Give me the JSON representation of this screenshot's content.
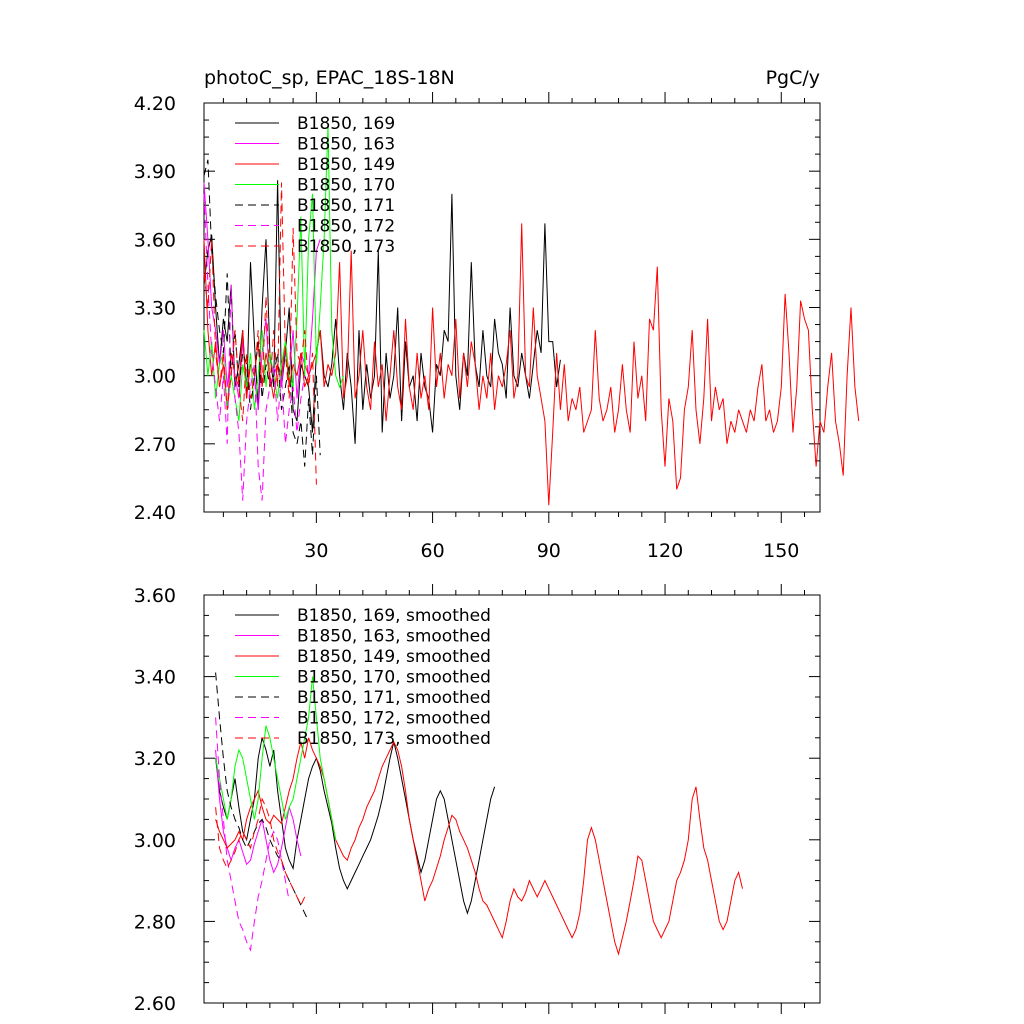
{
  "figure": {
    "title_left": "photoC_sp, EPAC_18S-18N",
    "title_right": "PgC/y"
  },
  "chart_data": [
    {
      "type": "line",
      "title": "photoC_sp, EPAC_18S-18N",
      "units": "PgC/y",
      "xlabel": "",
      "ylabel": "",
      "xlim": [
        1,
        160
      ],
      "ylim": [
        2.4,
        4.2
      ],
      "x_ticks": [
        30,
        60,
        90,
        120,
        150
      ],
      "y_ticks": [
        2.4,
        2.7,
        3.0,
        3.3,
        3.6,
        3.9,
        4.2
      ],
      "y_tick_labels": [
        "2.40",
        "2.70",
        "3.00",
        "3.30",
        "3.60",
        "3.90",
        "4.20"
      ],
      "x_tick_labels": [
        "30",
        "60",
        "90",
        "120",
        "150"
      ],
      "legend_position": "top-left",
      "series": [
        {
          "name": "B1850, 169",
          "color": "#000000",
          "dash": "solid",
          "x_start": 1,
          "values": [
            3.4,
            3.55,
            3.62,
            3.3,
            3.05,
            3.25,
            3.15,
            3.4,
            2.95,
            3.05,
            3.2,
            2.9,
            3.5,
            3.15,
            2.85,
            3.3,
            3.6,
            3.1,
            2.95,
            3.86,
            2.95,
            3.1,
            3.3,
            2.85,
            2.8,
            3.05,
            3.0,
            2.95,
            2.75,
            3.1,
            3.2,
            3.0,
            2.95,
            3.05,
            3.25,
            3.0,
            2.85,
            3.1,
            2.95,
            2.7,
            3.2,
            2.85,
            3.05,
            2.9,
            3.0,
            3.55,
            2.75,
            3.1,
            2.9,
            3.0,
            3.3,
            2.8,
            3.15,
            2.95,
            3.0,
            2.8,
            3.1,
            2.95,
            2.9,
            2.75,
            3.05,
            3.0,
            3.2,
            3.15,
            3.8,
            3.0,
            2.85,
            3.1,
            3.0,
            3.5,
            3.05,
            2.95,
            3.2,
            3.0,
            2.95,
            3.25,
            3.1,
            3.05,
            2.9,
            3.3,
            3.0,
            2.95,
            3.1,
            3.0,
            2.9,
            3.05,
            3.2,
            3.1,
            3.67,
            3.15,
            3.15,
            2.95,
            3.07
          ]
        },
        {
          "name": "B1850, 163",
          "color": "#ff00ff",
          "dash": "solid",
          "x_start": 1,
          "values": [
            3.85,
            3.6,
            3.3,
            3.2,
            3.05,
            3.2,
            2.95,
            3.1,
            3.0,
            2.9,
            3.15,
            2.95,
            3.05,
            3.0,
            2.85,
            3.1,
            3.25,
            2.95,
            3.0,
            3.05,
            2.95,
            3.15,
            3.0,
            3.2,
            2.9,
            3.1,
            3.05,
            3.0,
            3.25,
            3.55,
            3.6
          ]
        },
        {
          "name": "B1850, 149",
          "color": "#ff0000",
          "dash": "solid",
          "x_start": 1,
          "values": [
            3.6,
            3.2,
            3.0,
            3.15,
            2.95,
            3.05,
            2.85,
            3.1,
            3.0,
            2.95,
            3.2,
            2.9,
            3.05,
            3.0,
            3.15,
            2.95,
            3.1,
            3.0,
            2.9,
            3.05,
            3.0,
            3.15,
            2.95,
            3.05,
            3.0,
            3.1,
            2.95,
            3.0,
            3.05,
            3.1,
            3.2,
            2.95,
            3.05,
            3.0,
            3.1,
            3.5,
            2.9,
            3.0,
            3.55,
            2.9,
            3.0,
            3.2,
            2.95,
            2.85,
            3.15,
            2.95,
            3.05,
            2.8,
            3.0,
            3.2,
            2.95,
            2.85,
            3.25,
            2.95,
            2.85,
            3.1,
            2.9,
            3.0,
            2.85,
            3.3,
            2.95,
            3.1,
            2.9,
            3.05,
            3.0,
            3.25,
            2.9,
            3.1,
            2.95,
            3.15,
            3.05,
            2.85,
            3.0,
            2.9,
            3.1,
            2.85,
            3.0,
            2.95,
            3.05,
            3.2,
            2.9,
            3.0,
            3.67,
            3.0,
            2.95,
            3.3,
            3.0,
            2.9,
            2.8,
            2.43,
            2.75,
            3.1,
            2.85,
            3.05,
            2.8,
            2.9,
            2.85,
            2.95,
            2.75,
            2.8,
            2.85,
            3.2,
            2.9,
            2.8,
            2.85,
            2.95,
            2.75,
            2.85,
            3.05,
            2.85,
            2.75,
            3.15,
            2.9,
            3.0,
            2.8,
            3.25,
            3.2,
            3.48,
            2.85,
            2.6,
            2.9,
            2.8,
            2.5,
            2.55,
            2.85,
            2.95,
            3.2,
            2.85,
            2.7,
            2.9,
            3.25,
            2.8,
            2.95,
            2.85,
            2.9,
            2.7,
            2.8,
            2.75,
            2.85,
            2.8,
            2.75,
            2.85,
            2.8,
            2.95,
            3.05,
            2.8,
            2.85,
            2.75,
            2.8,
            2.95,
            3.36,
            3.1,
            2.75,
            2.95,
            3.33,
            3.25,
            3.2,
            2.85,
            2.6,
            2.8,
            2.75,
            2.95,
            3.1,
            2.8,
            2.7,
            2.56,
            3.0,
            3.3,
            2.95,
            2.8
          ]
        },
        {
          "name": "B1850, 170",
          "color": "#00ff00",
          "dash": "solid",
          "x_start": 1,
          "values": [
            3.2,
            3.0,
            3.15,
            2.9,
            3.05,
            3.1,
            2.85,
            3.0,
            2.9,
            2.8,
            3.05,
            2.95,
            3.1,
            2.85,
            3.0,
            3.2,
            2.95,
            3.1,
            3.0,
            2.9,
            3.05,
            3.15,
            3.0,
            2.95,
            3.25,
            3.7,
            3.0,
            3.6,
            3.8,
            3.05,
            3.3,
            3.6,
            4.1,
            3.2,
            3.0,
            2.95,
            3.0
          ]
        },
        {
          "name": "B1850, 171",
          "color": "#000000",
          "dash": "dashed",
          "x_start": 1,
          "values": [
            3.88,
            3.95,
            3.55,
            3.35,
            3.2,
            3.1,
            3.45,
            3.0,
            3.2,
            2.95,
            3.1,
            3.05,
            2.85,
            3.0,
            3.15,
            2.9,
            3.05,
            2.95,
            3.0,
            3.1,
            2.85,
            2.95,
            3.05,
            2.75,
            2.7,
            2.8,
            2.6,
            2.9,
            2.65,
            3.0,
            2.65
          ]
        },
        {
          "name": "B1850, 172",
          "color": "#ff00ff",
          "dash": "dashed",
          "x_start": 1,
          "values": [
            3.8,
            3.4,
            3.1,
            2.95,
            2.8,
            3.0,
            2.7,
            3.4,
            2.9,
            2.75,
            2.45,
            2.8,
            2.95,
            3.05,
            2.6,
            2.45,
            2.85,
            2.95,
            3.05,
            2.8,
            3.0,
            2.7,
            2.85,
            2.95,
            2.75,
            2.9,
            3.0
          ]
        },
        {
          "name": "B1850, 173",
          "color": "#ff0000",
          "dash": "dashed",
          "x_start": 1,
          "values": [
            3.45,
            3.3,
            3.6,
            3.1,
            2.95,
            3.1,
            2.85,
            3.0,
            3.2,
            2.95,
            2.8,
            3.1,
            2.9,
            3.0,
            3.2,
            2.95,
            3.35,
            2.95,
            3.2,
            2.95,
            3.85,
            3.1,
            2.9,
            3.65,
            3.1,
            3.05,
            3.2,
            2.95,
            3.1,
            2.52
          ]
        }
      ]
    },
    {
      "type": "line",
      "title": "",
      "xlabel": "",
      "ylabel": "",
      "xlim": [
        1,
        160
      ],
      "ylim": [
        2.6,
        3.6
      ],
      "x_ticks": [
        30,
        60,
        90,
        120,
        150
      ],
      "y_ticks": [
        2.6,
        2.8,
        3.0,
        3.2,
        3.4,
        3.6
      ],
      "y_tick_labels": [
        "2.60",
        "2.80",
        "3.00",
        "3.20",
        "3.40",
        "3.60"
      ],
      "legend_position": "top-left",
      "series": [
        {
          "name": "B1850, 169, smoothed",
          "color": "#000000",
          "dash": "solid",
          "x_start": 4,
          "values": [
            3.2,
            3.12,
            3.08,
            3.05,
            3.1,
            3.15,
            3.08,
            3.02,
            3.0,
            3.05,
            3.1,
            3.2,
            3.25,
            3.22,
            3.18,
            3.22,
            3.12,
            3.05,
            2.98,
            2.95,
            2.93,
            3.0,
            3.05,
            3.1,
            3.15,
            3.18,
            3.2,
            3.17,
            3.12,
            3.08,
            3.04,
            2.98,
            2.93,
            2.9,
            2.88,
            2.9,
            2.92,
            2.94,
            2.96,
            2.98,
            3.0,
            3.03,
            3.06,
            3.1,
            3.15,
            3.2,
            3.24,
            3.2,
            3.15,
            3.1,
            3.05,
            3.0,
            2.96,
            2.92,
            2.95,
            3.0,
            3.05,
            3.1,
            3.12,
            3.1,
            3.05,
            3.0,
            2.95,
            2.9,
            2.85,
            2.82,
            2.85,
            2.9,
            2.95,
            3.0,
            3.05,
            3.1,
            3.13
          ]
        },
        {
          "name": "B1850, 163, smoothed",
          "color": "#ff00ff",
          "dash": "solid",
          "x_start": 4,
          "values": [
            3.22,
            3.1,
            3.02,
            2.98,
            2.95,
            2.98,
            3.0,
            2.97,
            2.94,
            2.95,
            2.99,
            3.02,
            3.05,
            3.0,
            2.95,
            2.92,
            2.94,
            2.98,
            3.03,
            3.08,
            3.05,
            3.0,
            2.96
          ]
        },
        {
          "name": "B1850, 149, smoothed",
          "color": "#ff0000",
          "dash": "solid",
          "x_start": 4,
          "values": [
            3.05,
            3.02,
            3.0,
            2.98,
            2.99,
            3.0,
            3.02,
            3.0,
            3.05,
            3.08,
            3.1,
            3.12,
            3.08,
            3.05,
            3.04,
            3.06,
            3.05,
            3.04,
            3.08,
            3.12,
            3.15,
            3.2,
            3.24,
            3.2,
            3.25,
            3.22,
            3.2,
            3.18,
            3.15,
            3.1,
            3.05,
            3.0,
            2.98,
            2.96,
            2.95,
            2.98,
            3.0,
            3.03,
            3.05,
            3.08,
            3.1,
            3.12,
            3.15,
            3.18,
            3.2,
            3.22,
            3.24,
            3.22,
            3.18,
            3.12,
            3.05,
            3.0,
            2.95,
            2.9,
            2.85,
            2.88,
            2.9,
            2.93,
            2.96,
            3.0,
            3.03,
            3.06,
            3.05,
            3.02,
            3.0,
            2.98,
            2.95,
            2.92,
            2.88,
            2.85,
            2.84,
            2.82,
            2.8,
            2.78,
            2.76,
            2.8,
            2.85,
            2.88,
            2.86,
            2.85,
            2.87,
            2.9,
            2.88,
            2.86,
            2.88,
            2.9,
            2.88,
            2.86,
            2.84,
            2.82,
            2.8,
            2.78,
            2.76,
            2.78,
            2.82,
            2.9,
            3.0,
            3.03,
            3.0,
            2.95,
            2.9,
            2.85,
            2.8,
            2.75,
            2.72,
            2.76,
            2.8,
            2.85,
            2.9,
            2.96,
            2.95,
            2.9,
            2.85,
            2.8,
            2.78,
            2.76,
            2.78,
            2.8,
            2.85,
            2.9,
            2.92,
            2.95,
            3.0,
            3.1,
            3.13,
            3.05,
            2.98,
            2.95,
            2.9,
            2.85,
            2.8,
            2.78,
            2.8,
            2.85,
            2.9,
            2.92,
            2.88
          ]
        },
        {
          "name": "B1850, 170, smoothed",
          "color": "#00ff00",
          "dash": "solid",
          "x_start": 4,
          "values": [
            3.2,
            3.15,
            3.1,
            3.05,
            3.1,
            3.18,
            3.22,
            3.2,
            3.15,
            3.1,
            3.05,
            3.1,
            3.2,
            3.28,
            3.25,
            3.2,
            3.15,
            3.1,
            3.05,
            3.08,
            3.1,
            3.15,
            3.2,
            3.25,
            3.3,
            3.4,
            3.3,
            3.2,
            3.15,
            3.1,
            3.05,
            3.0
          ]
        },
        {
          "name": "B1850, 171, smoothed",
          "color": "#000000",
          "dash": "dashed",
          "x_start": 4,
          "values": [
            3.41,
            3.3,
            3.2,
            3.12,
            3.08,
            3.05,
            3.03,
            3.0,
            2.98,
            3.0,
            3.02,
            3.04,
            3.05,
            3.03,
            3.0,
            2.98,
            2.96,
            2.95,
            2.92,
            2.9,
            2.88,
            2.86,
            2.84,
            2.82,
            2.8
          ]
        },
        {
          "name": "B1850, 172, smoothed",
          "color": "#ff00ff",
          "dash": "dashed",
          "x_start": 4,
          "values": [
            3.3,
            3.15,
            3.05,
            2.95,
            2.9,
            2.85,
            2.8,
            2.78,
            2.75,
            2.73,
            2.8,
            2.86,
            2.9,
            2.95,
            3.0,
            3.02,
            3.0,
            2.95,
            2.9,
            2.85
          ]
        },
        {
          "name": "B1850, 173, smoothed",
          "color": "#ff0000",
          "dash": "dashed",
          "x_start": 4,
          "values": [
            3.08,
            2.98,
            2.95,
            2.93,
            2.95,
            2.97,
            3.0,
            3.02,
            3.0,
            2.98,
            3.02,
            3.05,
            3.1,
            3.08,
            3.05,
            3.0,
            2.97,
            2.95,
            2.92,
            2.9,
            2.88,
            2.86,
            2.84,
            2.86
          ]
        }
      ]
    }
  ]
}
